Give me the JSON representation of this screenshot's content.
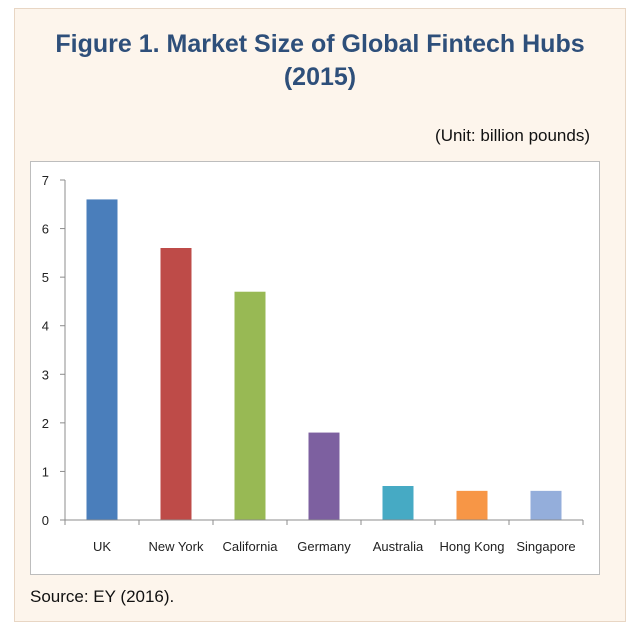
{
  "figure": {
    "title_line1": "Figure 1. Market Size of Global Fintech Hubs",
    "title_line2": "(2015)",
    "unit": "(Unit: billion pounds)",
    "source": "Source: EY (2016)."
  },
  "chart_data": {
    "type": "bar",
    "title": "Figure 1. Market Size of Global Fintech Hubs (2015)",
    "xlabel": "",
    "ylabel": "",
    "categories": [
      "UK",
      "New York",
      "California",
      "Germany",
      "Australia",
      "Hong Kong",
      "Singapore"
    ],
    "values": [
      6.6,
      5.6,
      4.7,
      1.8,
      0.7,
      0.6,
      0.6
    ],
    "colors": [
      "#4a7ebb",
      "#be4b48",
      "#98b954",
      "#7d60a0",
      "#46aac4",
      "#f79646",
      "#94aedb"
    ],
    "ylim": [
      0,
      7
    ],
    "yticks": [
      0,
      1,
      2,
      3,
      4,
      5,
      6,
      7
    ],
    "grid": false,
    "legend": "none"
  }
}
